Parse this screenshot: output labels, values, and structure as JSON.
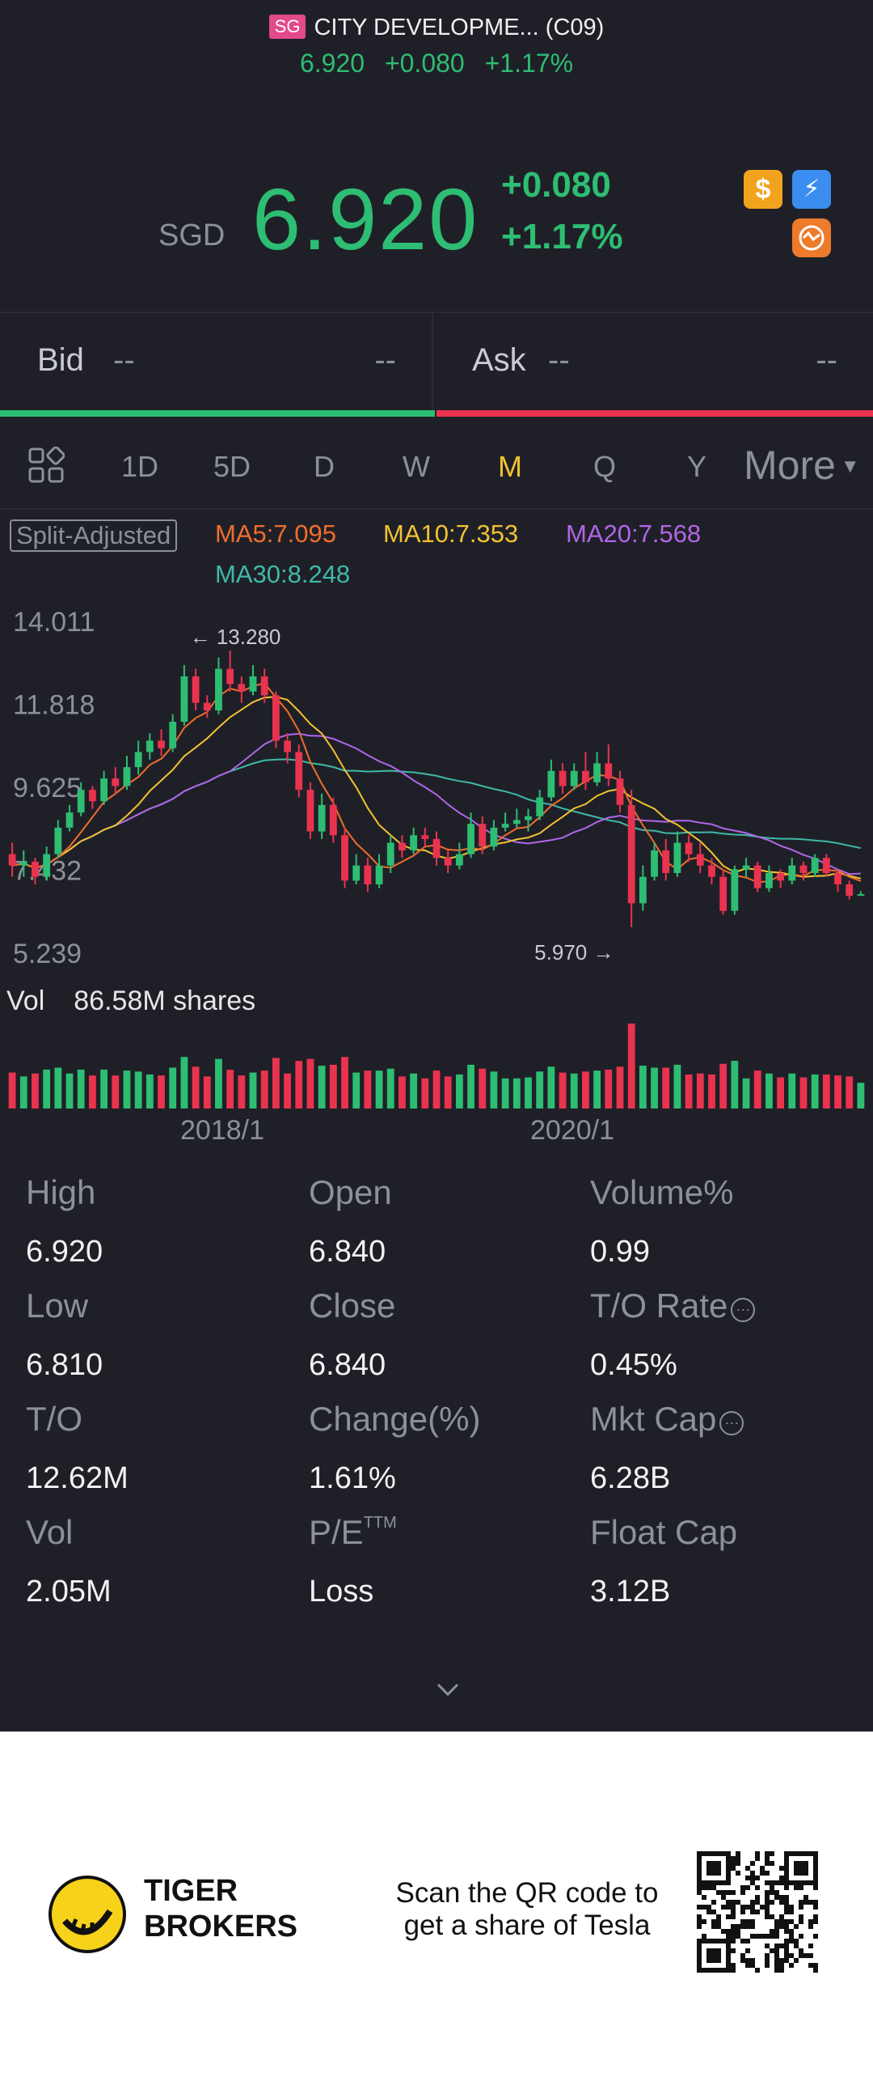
{
  "header": {
    "market_badge": "SG",
    "title": "CITY DEVELOPME... (C09)",
    "price": "6.920",
    "change": "+0.080",
    "change_pct": "+1.17%"
  },
  "quote": {
    "currency": "SGD",
    "price": "6.920",
    "change": "+0.080",
    "change_pct": "+1.17%",
    "icons": [
      "dollar-icon",
      "lightning-icon",
      "swap-icon"
    ]
  },
  "bid_ask": {
    "bid_label": "Bid",
    "bid_price": "--",
    "bid_size": "--",
    "ask_label": "Ask",
    "ask_price": "--",
    "ask_size": "--"
  },
  "periods": {
    "items": [
      "1D",
      "5D",
      "D",
      "W",
      "M",
      "Q",
      "Y"
    ],
    "active": "M",
    "more": "More"
  },
  "indicators": {
    "split": "Split-Adjusted",
    "ma5": "MA5:7.095",
    "ma10": "MA10:7.353",
    "ma20": "MA20:7.568",
    "ma30": "MA30:8.248"
  },
  "chart_data": {
    "type": "candlestick",
    "y_ticks": [
      "14.011",
      "11.818",
      "9.625",
      "7.432",
      "5.239"
    ],
    "ylim": [
      5.239,
      14.011
    ],
    "x_ticks": [
      "2018/1",
      "2020/1"
    ],
    "high_marker": "13.280",
    "low_marker": "5.970",
    "colors": {
      "up": "#2dbd73",
      "down": "#e9334f",
      "ma5": "#f06d2c",
      "ma10": "#f2c230",
      "ma20": "#b066e8",
      "ma30": "#3fb8a8"
    },
    "candles": [
      [
        7.9,
        7.6,
        8.2,
        7.3
      ],
      [
        7.6,
        7.7,
        8.0,
        7.3
      ],
      [
        7.7,
        7.3,
        7.8,
        7.1
      ],
      [
        7.3,
        7.9,
        8.1,
        7.2
      ],
      [
        7.9,
        8.6,
        8.8,
        7.8
      ],
      [
        8.6,
        9.0,
        9.2,
        8.5
      ],
      [
        9.0,
        9.6,
        9.8,
        8.9
      ],
      [
        9.6,
        9.3,
        9.7,
        9.1
      ],
      [
        9.3,
        9.9,
        10.1,
        9.2
      ],
      [
        9.9,
        9.7,
        10.2,
        9.5
      ],
      [
        9.7,
        10.2,
        10.5,
        9.6
      ],
      [
        10.2,
        10.6,
        10.9,
        10.0
      ],
      [
        10.6,
        10.9,
        11.1,
        10.4
      ],
      [
        10.9,
        10.7,
        11.2,
        10.5
      ],
      [
        10.7,
        11.4,
        11.6,
        10.6
      ],
      [
        11.4,
        12.6,
        12.9,
        11.3
      ],
      [
        12.6,
        11.9,
        12.8,
        11.7
      ],
      [
        11.9,
        11.7,
        12.1,
        11.5
      ],
      [
        11.7,
        12.8,
        13.1,
        11.6
      ],
      [
        12.8,
        12.4,
        13.28,
        12.2
      ],
      [
        12.4,
        12.2,
        12.6,
        11.9
      ],
      [
        12.2,
        12.6,
        12.9,
        12.1
      ],
      [
        12.6,
        12.1,
        12.8,
        11.9
      ],
      [
        12.1,
        10.9,
        12.2,
        10.7
      ],
      [
        10.9,
        10.6,
        11.1,
        10.3
      ],
      [
        10.6,
        9.6,
        10.8,
        9.4
      ],
      [
        9.6,
        8.5,
        9.8,
        8.3
      ],
      [
        8.5,
        9.2,
        9.5,
        8.3
      ],
      [
        9.2,
        8.4,
        9.4,
        8.2
      ],
      [
        8.4,
        7.2,
        8.6,
        7.0
      ],
      [
        7.2,
        7.6,
        7.9,
        7.1
      ],
      [
        7.6,
        7.1,
        7.8,
        6.9
      ],
      [
        7.1,
        7.6,
        7.9,
        7.0
      ],
      [
        7.6,
        8.2,
        8.4,
        7.4
      ],
      [
        8.2,
        8.0,
        8.4,
        7.8
      ],
      [
        8.0,
        8.4,
        8.6,
        7.9
      ],
      [
        8.4,
        8.3,
        8.6,
        8.1
      ],
      [
        8.3,
        7.8,
        8.5,
        7.6
      ],
      [
        7.8,
        7.6,
        8.0,
        7.4
      ],
      [
        7.6,
        7.9,
        8.2,
        7.5
      ],
      [
        7.9,
        8.7,
        9.0,
        7.8
      ],
      [
        8.7,
        8.1,
        8.9,
        7.9
      ],
      [
        8.1,
        8.6,
        8.8,
        8.0
      ],
      [
        8.6,
        8.7,
        9.0,
        8.5
      ],
      [
        8.7,
        8.8,
        9.1,
        8.6
      ],
      [
        8.8,
        8.9,
        9.1,
        8.5
      ],
      [
        8.9,
        9.4,
        9.6,
        8.8
      ],
      [
        9.4,
        10.1,
        10.4,
        9.3
      ],
      [
        10.1,
        9.7,
        10.3,
        9.5
      ],
      [
        9.7,
        10.1,
        10.3,
        9.6
      ],
      [
        10.1,
        9.8,
        10.6,
        9.6
      ],
      [
        9.8,
        10.3,
        10.6,
        9.7
      ],
      [
        10.3,
        9.9,
        10.8,
        9.7
      ],
      [
        9.9,
        9.2,
        10.1,
        9.0
      ],
      [
        9.2,
        6.6,
        9.6,
        5.97
      ],
      [
        6.6,
        7.3,
        7.6,
        6.4
      ],
      [
        7.3,
        8.0,
        8.2,
        7.2
      ],
      [
        8.0,
        7.4,
        8.3,
        7.2
      ],
      [
        7.4,
        8.2,
        8.5,
        7.3
      ],
      [
        8.2,
        7.9,
        8.4,
        7.7
      ],
      [
        7.9,
        7.6,
        8.2,
        7.4
      ],
      [
        7.6,
        7.3,
        7.8,
        7.1
      ],
      [
        7.3,
        6.4,
        7.5,
        6.3
      ],
      [
        6.4,
        7.5,
        7.6,
        6.3
      ],
      [
        7.5,
        7.6,
        7.8,
        7.3
      ],
      [
        7.6,
        7.0,
        7.7,
        6.9
      ],
      [
        7.0,
        7.4,
        7.6,
        6.9
      ],
      [
        7.4,
        7.2,
        7.5,
        7.0
      ],
      [
        7.2,
        7.6,
        7.8,
        7.1
      ],
      [
        7.6,
        7.4,
        7.7,
        7.2
      ],
      [
        7.4,
        7.8,
        7.9,
        7.3
      ],
      [
        7.8,
        7.4,
        7.9,
        7.3
      ],
      [
        7.4,
        7.1,
        7.5,
        6.9
      ],
      [
        7.1,
        6.8,
        7.2,
        6.7
      ],
      [
        6.8,
        6.84,
        6.92,
        6.81
      ]
    ],
    "volume_label": "Vol",
    "volume_value": "86.58M shares"
  },
  "stats": [
    {
      "label": "High",
      "value": "6.920"
    },
    {
      "label": "Open",
      "value": "6.840"
    },
    {
      "label": "Volume%",
      "value": "0.99"
    },
    {
      "label": "Low",
      "value": "6.810"
    },
    {
      "label": "Close",
      "value": "6.840"
    },
    {
      "label": "T/O Rate",
      "value": "0.45%"
    },
    {
      "label": "T/O",
      "value": "12.62M"
    },
    {
      "label": "Change(%)",
      "value": "1.61%"
    },
    {
      "label": "Mkt Cap",
      "value": "6.28B"
    },
    {
      "label": "Vol",
      "value": "2.05M"
    },
    {
      "label": "P/E",
      "value": "Loss"
    },
    {
      "label": "Float Cap",
      "value": "3.12B"
    }
  ],
  "pe_sup": "TTM",
  "footer": {
    "brand_line1": "TIGER",
    "brand_line2": "BROKERS",
    "scan_line1": "Scan the QR code to",
    "scan_line2": "get a share of Tesla"
  }
}
